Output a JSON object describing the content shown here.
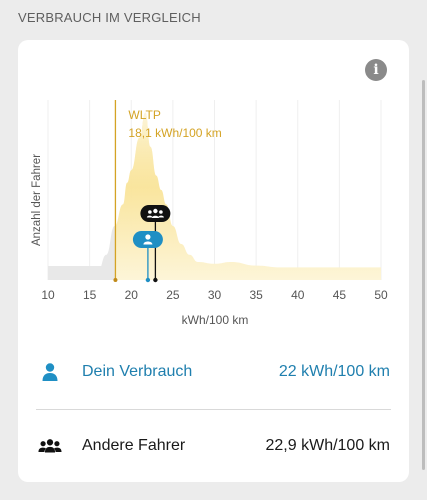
{
  "section": {
    "title": "VERBRAUCH IM VERGLEICH"
  },
  "info": {
    "symbol": "i"
  },
  "chart_data": {
    "type": "area",
    "ylabel": "Anzahl der Fahrer",
    "xlabel": "kWh/100 km",
    "x_ticks": [
      "10",
      "15",
      "20",
      "25",
      "30",
      "35",
      "40",
      "45",
      "50"
    ],
    "xlim": [
      10,
      50
    ],
    "grid": true,
    "distribution": {
      "x": [
        10,
        13,
        15,
        16,
        17,
        18,
        19,
        19.5,
        20,
        21,
        21.7,
        22.3,
        23,
        23.6,
        24.2,
        25,
        26,
        27,
        28,
        30,
        32,
        35,
        38,
        42,
        46,
        50
      ],
      "y": [
        0,
        0,
        0.01,
        0.05,
        0.14,
        0.3,
        0.42,
        0.54,
        0.61,
        0.79,
        0.93,
        0.74,
        0.58,
        0.5,
        0.42,
        0.3,
        0.2,
        0.14,
        0.1,
        0.09,
        0.1,
        0.08,
        0.07,
        0.07,
        0.07,
        0.07
      ]
    },
    "markers": {
      "wltp": {
        "label": "WLTP",
        "value_text": "18,1 kWh/100 km",
        "x": 18.1
      },
      "own": {
        "x": 22.0
      },
      "others": {
        "x": 22.9
      }
    },
    "colors": {
      "wltp": "#d4a324",
      "fill_top": "#f6d76a",
      "fill_bottom": "#fdf5d8",
      "grey_fill": "#e8e8e8",
      "own": "#1f8fc4",
      "others": "#111111"
    }
  },
  "rows": {
    "own": {
      "icon": "person-icon",
      "label": "Dein Verbrauch",
      "value": "22 kWh/100 km"
    },
    "other": {
      "icon": "group-icon",
      "label": "Andere Fahrer",
      "value": "22,9 kWh/100 km"
    }
  }
}
